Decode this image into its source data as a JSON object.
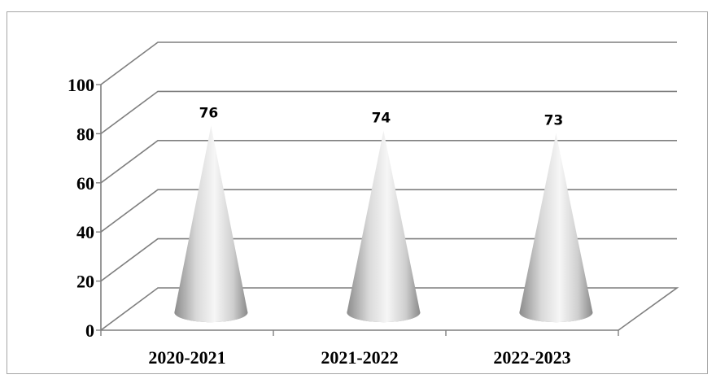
{
  "chart_data": {
    "type": "bar",
    "bar_shape": "cone",
    "view": "3d",
    "categories": [
      "2020-2021",
      "2021-2022",
      "2022-2023"
    ],
    "values": [
      76,
      74,
      73
    ],
    "data_labels": [
      "76",
      "74",
      "73"
    ],
    "ylim": [
      0,
      100
    ],
    "yticks": [
      "0",
      "20",
      "40",
      "60",
      "80",
      "100"
    ],
    "grid": true,
    "legend": "none",
    "title": "",
    "xlabel": "",
    "ylabel": "",
    "colors": {
      "cone_dark": "#8c8c8c",
      "cone_light": "#f4f4f4",
      "grid": "#7f7f7f"
    }
  }
}
